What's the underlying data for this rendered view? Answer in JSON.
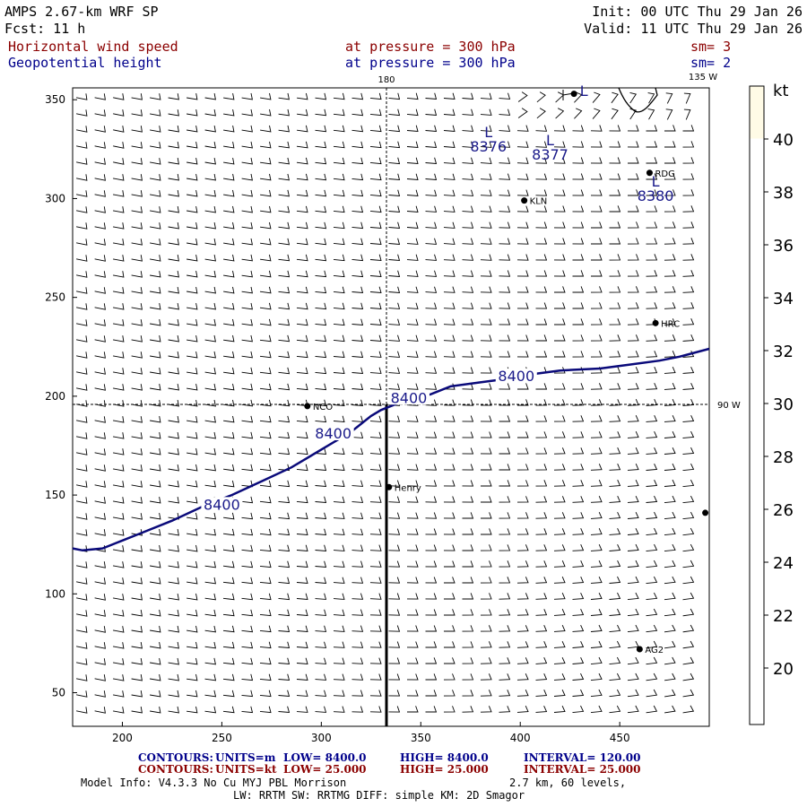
{
  "header": {
    "model": "AMPS 2.67-km WRF SP",
    "fcst": "Fcst:   11 h",
    "init": "Init: 00 UTC Thu 29 Jan 26",
    "valid": "Valid: 11 UTC Thu 29 Jan 26",
    "field1": "Horizontal wind speed",
    "field1_level": "at pressure =  300 hPa",
    "field1_sm": "sm= 3",
    "field2": "Geopotential height",
    "field2_level": "at pressure =  300 hPa",
    "field2_sm": "sm= 2"
  },
  "map": {
    "meridian_180": "180",
    "meridian_135w": "135 W",
    "parallel_90w": "90 W",
    "xlim": [
      175,
      495
    ],
    "ylim": [
      33,
      356
    ],
    "xticks": [
      200,
      250,
      300,
      350,
      400,
      450
    ],
    "yticks": [
      50,
      100,
      150,
      200,
      250,
      300,
      350
    ],
    "stations": [
      {
        "name": "RDG",
        "x": 465,
        "y": 313
      },
      {
        "name": "KLN",
        "x": 402,
        "y": 299
      },
      {
        "name": "HRC",
        "x": 468,
        "y": 237
      },
      {
        "name": "NCO",
        "x": 293,
        "y": 195
      },
      {
        "name": "Henry",
        "x": 334,
        "y": 154
      },
      {
        "name": "AG2",
        "x": 460,
        "y": 72
      },
      {
        "name": "",
        "x": 493,
        "y": 141
      },
      {
        "name": "",
        "x": 427,
        "y": 353
      }
    ],
    "height_contour": {
      "value": "8400",
      "labels": [
        {
          "text": "8400",
          "x": 250,
          "y": 144
        },
        {
          "text": "8400",
          "x": 306,
          "y": 180
        },
        {
          "text": "8400",
          "x": 344,
          "y": 198
        },
        {
          "text": "8400",
          "x": 398,
          "y": 209
        }
      ],
      "points": [
        [
          175,
          123
        ],
        [
          180,
          122
        ],
        [
          190,
          123
        ],
        [
          200,
          127
        ],
        [
          210,
          131
        ],
        [
          225,
          137
        ],
        [
          240,
          144
        ],
        [
          255,
          150
        ],
        [
          270,
          157
        ],
        [
          285,
          164
        ],
        [
          295,
          170
        ],
        [
          305,
          176
        ],
        [
          315,
          182
        ],
        [
          325,
          190
        ],
        [
          330,
          193
        ],
        [
          340,
          197
        ],
        [
          355,
          201
        ],
        [
          365,
          205
        ],
        [
          380,
          207
        ],
        [
          395,
          209
        ],
        [
          405,
          211
        ],
        [
          420,
          213
        ],
        [
          440,
          214
        ],
        [
          455,
          216
        ],
        [
          470,
          218
        ],
        [
          480,
          220
        ],
        [
          495,
          224
        ]
      ]
    },
    "lows": [
      {
        "marker": "L",
        "value": "8376",
        "x": 384,
        "y": 331
      },
      {
        "marker": "L",
        "value": "8377",
        "x": 415,
        "y": 327
      },
      {
        "marker": "L",
        "value": "8380",
        "x": 468,
        "y": 306
      },
      {
        "marker": "L",
        "value": "",
        "x": 432,
        "y": 352
      }
    ]
  },
  "colorbar": {
    "unit": "kt",
    "labels": [
      40,
      38,
      36,
      34,
      32,
      30,
      28,
      26,
      24,
      22,
      20
    ],
    "top_color": "#fffbe6"
  },
  "footer": {
    "contours1_label": "CONTOURS:",
    "contours1_units": "UNITS=m",
    "contours1_low": "LOW=   8400.0",
    "contours1_high": "HIGH=   8400.0",
    "contours1_interval": "INTERVAL=     120.00",
    "contours2_label": "CONTOURS:",
    "contours2_units": "UNITS=kt",
    "contours2_low": "LOW=   25.000",
    "contours2_high": "HIGH=   25.000",
    "contours2_interval": "INTERVAL=     25.000",
    "model_info": "Model Info: V4.3.3    No Cu    MYJ PBL  Morrison",
    "grid_info": "2.7 km,  60 levels,",
    "physics_info": "LW: RRTM SW: RRTMG    DIFF: simple KM: 2D Smagor",
    "color_blue": "#00008b",
    "color_red": "#8b0000"
  }
}
